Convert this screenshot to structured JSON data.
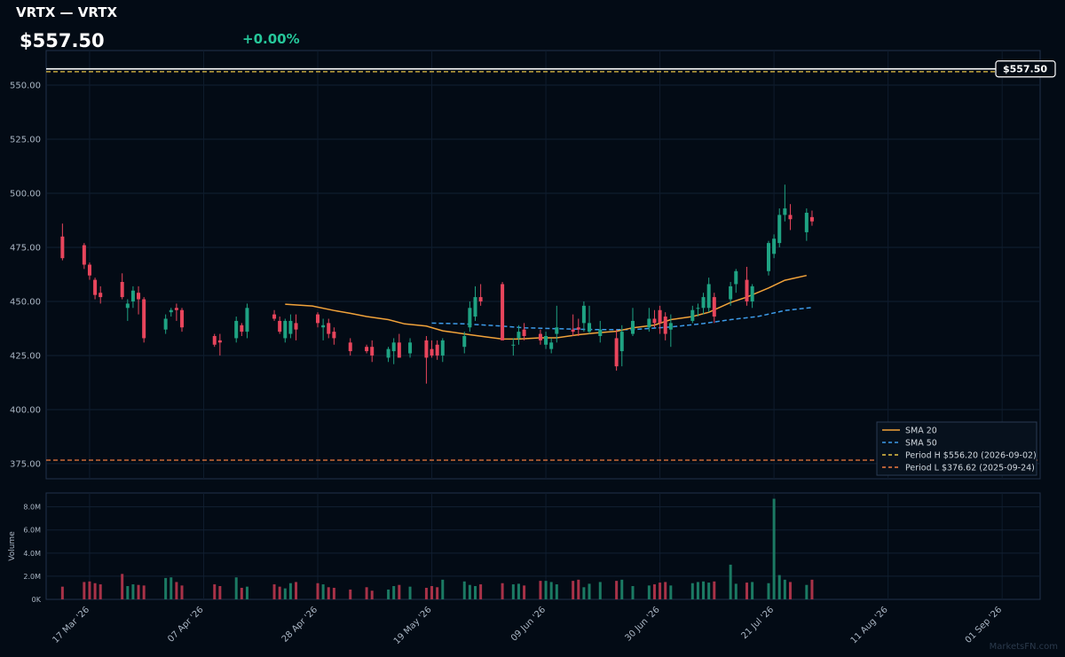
{
  "header": {
    "title": "VRTX — VRTX",
    "price": "$557.50",
    "change": "+0.00%"
  },
  "watermark": "MarketsFN.com",
  "colors": {
    "up": "#1fa383",
    "down": "#e8455c",
    "sma20": "#f2a33a",
    "sma50": "#3d9be9",
    "period_high": "#e8c446",
    "period_low": "#f07b3f",
    "last_price": "#ffffff"
  },
  "chart_data": [
    {
      "type": "candlestick",
      "ylim": [
        368,
        566
      ],
      "yticks": [
        375,
        400,
        425,
        450,
        475,
        500,
        525,
        550
      ],
      "ytick_labels": [
        "375.00",
        "400.00",
        "425.00",
        "450.00",
        "475.00",
        "500.00",
        "525.00",
        "550.00"
      ],
      "x_start": "2026-03-09",
      "x_end": "2026-09-08",
      "xtick_dates": [
        "2026-03-17",
        "2026-04-07",
        "2026-04-28",
        "2026-05-19",
        "2026-06-09",
        "2026-06-30",
        "2026-07-21",
        "2026-08-11",
        "2026-09-01"
      ],
      "xtick_labels": [
        "17 Mar '26",
        "07 Apr '26",
        "28 Apr '26",
        "19 May '26",
        "09 Jun '26",
        "30 Jun '26",
        "21 Jul '26",
        "11 Aug '26",
        "01 Sep '26"
      ],
      "last_price": 557.5,
      "last_price_label": "$557.50",
      "candles": [
        {
          "d": "2026-03-12",
          "o": 480,
          "h": 486,
          "l": 469,
          "c": 470
        },
        {
          "d": "2026-03-16",
          "o": 476,
          "h": 477,
          "l": 465,
          "c": 467
        },
        {
          "d": "2026-03-17",
          "o": 467,
          "h": 468,
          "l": 460,
          "c": 462
        },
        {
          "d": "2026-03-18",
          "o": 460,
          "h": 461,
          "l": 451,
          "c": 453
        },
        {
          "d": "2026-03-19",
          "o": 454,
          "h": 457,
          "l": 449,
          "c": 452
        },
        {
          "d": "2026-03-23",
          "o": 459,
          "h": 463,
          "l": 451,
          "c": 452
        },
        {
          "d": "2026-03-24",
          "o": 447,
          "h": 451,
          "l": 441,
          "c": 449
        },
        {
          "d": "2026-03-25",
          "o": 450,
          "h": 457,
          "l": 447,
          "c": 455
        },
        {
          "d": "2026-03-26",
          "o": 454,
          "h": 457,
          "l": 444,
          "c": 451
        },
        {
          "d": "2026-03-27",
          "o": 451,
          "h": 452,
          "l": 431,
          "c": 433
        },
        {
          "d": "2026-03-31",
          "o": 437,
          "h": 444,
          "l": 435,
          "c": 442
        },
        {
          "d": "2026-04-01",
          "o": 445,
          "h": 447,
          "l": 443,
          "c": 446
        },
        {
          "d": "2026-04-02",
          "o": 447,
          "h": 449,
          "l": 441,
          "c": 446
        },
        {
          "d": "2026-04-03",
          "o": 446,
          "h": 447,
          "l": 436,
          "c": 438
        },
        {
          "d": "2026-04-09",
          "o": 434,
          "h": 435,
          "l": 429,
          "c": 430
        },
        {
          "d": "2026-04-10",
          "o": 432,
          "h": 435,
          "l": 425,
          "c": 431
        },
        {
          "d": "2026-04-13",
          "o": 433,
          "h": 443,
          "l": 431,
          "c": 441
        },
        {
          "d": "2026-04-14",
          "o": 439,
          "h": 440,
          "l": 434,
          "c": 436
        },
        {
          "d": "2026-04-15",
          "o": 436,
          "h": 449,
          "l": 433,
          "c": 447
        },
        {
          "d": "2026-04-20",
          "o": 444,
          "h": 446,
          "l": 441,
          "c": 442
        },
        {
          "d": "2026-04-21",
          "o": 441,
          "h": 443,
          "l": 435,
          "c": 436
        },
        {
          "d": "2026-04-22",
          "o": 433,
          "h": 442,
          "l": 431,
          "c": 441
        },
        {
          "d": "2026-04-23",
          "o": 435,
          "h": 444,
          "l": 433,
          "c": 441
        },
        {
          "d": "2026-04-24",
          "o": 440,
          "h": 444,
          "l": 432,
          "c": 437
        },
        {
          "d": "2026-04-28",
          "o": 444,
          "h": 445,
          "l": 438,
          "c": 440
        },
        {
          "d": "2026-04-29",
          "o": 438,
          "h": 442,
          "l": 432,
          "c": 439
        },
        {
          "d": "2026-04-30",
          "o": 440,
          "h": 442,
          "l": 433,
          "c": 435
        },
        {
          "d": "2026-05-01",
          "o": 436,
          "h": 438,
          "l": 430,
          "c": 433
        },
        {
          "d": "2026-05-04",
          "o": 431,
          "h": 433,
          "l": 425,
          "c": 427
        },
        {
          "d": "2026-05-07",
          "o": 429,
          "h": 430,
          "l": 426,
          "c": 427
        },
        {
          "d": "2026-05-08",
          "o": 429,
          "h": 432,
          "l": 422,
          "c": 425
        },
        {
          "d": "2026-05-11",
          "o": 424,
          "h": 429,
          "l": 422,
          "c": 428
        },
        {
          "d": "2026-05-12",
          "o": 427,
          "h": 433,
          "l": 421,
          "c": 431
        },
        {
          "d": "2026-05-13",
          "o": 431,
          "h": 435,
          "l": 424,
          "c": 424
        },
        {
          "d": "2026-05-15",
          "o": 426,
          "h": 433,
          "l": 424,
          "c": 431
        },
        {
          "d": "2026-05-18",
          "o": 432,
          "h": 434,
          "l": 412,
          "c": 424
        },
        {
          "d": "2026-05-19",
          "o": 428,
          "h": 432,
          "l": 424,
          "c": 425
        },
        {
          "d": "2026-05-20",
          "o": 430,
          "h": 432,
          "l": 423,
          "c": 425
        },
        {
          "d": "2026-05-21",
          "o": 425,
          "h": 433,
          "l": 422,
          "c": 432
        },
        {
          "d": "2026-05-25",
          "o": 429,
          "h": 436,
          "l": 426,
          "c": 434
        },
        {
          "d": "2026-05-26",
          "o": 438,
          "h": 450,
          "l": 436,
          "c": 447
        },
        {
          "d": "2026-05-27",
          "o": 443,
          "h": 457,
          "l": 441,
          "c": 452
        },
        {
          "d": "2026-05-28",
          "o": 452,
          "h": 458,
          "l": 448,
          "c": 450
        },
        {
          "d": "2026-06-01",
          "o": 458,
          "h": 459,
          "l": 432,
          "c": 432
        },
        {
          "d": "2026-06-03",
          "o": 430,
          "h": 433,
          "l": 425,
          "c": 430
        },
        {
          "d": "2026-06-04",
          "o": 433,
          "h": 439,
          "l": 430,
          "c": 436
        },
        {
          "d": "2026-06-05",
          "o": 437,
          "h": 440,
          "l": 432,
          "c": 434
        },
        {
          "d": "2026-06-08",
          "o": 435,
          "h": 437,
          "l": 430,
          "c": 432
        },
        {
          "d": "2026-06-09",
          "o": 430,
          "h": 436,
          "l": 428,
          "c": 434
        },
        {
          "d": "2026-06-10",
          "o": 428,
          "h": 433,
          "l": 426,
          "c": 431
        },
        {
          "d": "2026-06-11",
          "o": 435,
          "h": 448,
          "l": 431,
          "c": 438
        },
        {
          "d": "2026-06-14",
          "o": 437,
          "h": 444,
          "l": 434,
          "c": 436
        },
        {
          "d": "2026-06-15",
          "o": 438,
          "h": 442,
          "l": 434,
          "c": 437
        },
        {
          "d": "2026-06-16",
          "o": 440,
          "h": 450,
          "l": 436,
          "c": 448
        },
        {
          "d": "2026-06-17",
          "o": 436,
          "h": 448,
          "l": 435,
          "c": 440
        },
        {
          "d": "2026-06-19",
          "o": 434,
          "h": 441,
          "l": 431,
          "c": 437
        },
        {
          "d": "2026-06-22",
          "o": 433,
          "h": 437,
          "l": 418,
          "c": 420
        },
        {
          "d": "2026-06-23",
          "o": 427,
          "h": 439,
          "l": 420,
          "c": 436
        },
        {
          "d": "2026-06-25",
          "o": 435,
          "h": 447,
          "l": 434,
          "c": 441
        },
        {
          "d": "2026-06-28",
          "o": 438,
          "h": 447,
          "l": 436,
          "c": 442
        },
        {
          "d": "2026-06-29",
          "o": 442,
          "h": 446,
          "l": 438,
          "c": 440
        },
        {
          "d": "2026-06-30",
          "o": 446,
          "h": 448,
          "l": 435,
          "c": 440
        },
        {
          "d": "2026-07-01",
          "o": 443,
          "h": 445,
          "l": 432,
          "c": 435
        },
        {
          "d": "2026-07-02",
          "o": 437,
          "h": 444,
          "l": 429,
          "c": 440
        },
        {
          "d": "2026-07-06",
          "o": 441,
          "h": 448,
          "l": 440,
          "c": 446
        },
        {
          "d": "2026-07-07",
          "o": 447,
          "h": 449,
          "l": 443,
          "c": 447
        },
        {
          "d": "2026-07-08",
          "o": 447,
          "h": 454,
          "l": 444,
          "c": 452
        },
        {
          "d": "2026-07-09",
          "o": 447,
          "h": 461,
          "l": 445,
          "c": 458
        },
        {
          "d": "2026-07-10",
          "o": 452,
          "h": 454,
          "l": 440,
          "c": 443
        },
        {
          "d": "2026-07-13",
          "o": 451,
          "h": 459,
          "l": 448,
          "c": 457
        },
        {
          "d": "2026-07-14",
          "o": 458,
          "h": 465,
          "l": 454,
          "c": 464
        },
        {
          "d": "2026-07-16",
          "o": 460,
          "h": 466,
          "l": 448,
          "c": 450
        },
        {
          "d": "2026-07-17",
          "o": 450,
          "h": 458,
          "l": 447,
          "c": 457
        },
        {
          "d": "2026-07-20",
          "o": 464,
          "h": 478,
          "l": 462,
          "c": 477
        },
        {
          "d": "2026-07-21",
          "o": 472,
          "h": 481,
          "l": 470,
          "c": 479
        },
        {
          "d": "2026-07-22",
          "o": 477,
          "h": 493,
          "l": 475,
          "c": 490
        },
        {
          "d": "2026-07-23",
          "o": 490,
          "h": 504,
          "l": 487,
          "c": 493
        },
        {
          "d": "2026-07-24",
          "o": 490,
          "h": 495,
          "l": 483,
          "c": 488
        },
        {
          "d": "2026-07-27",
          "o": 482,
          "h": 493,
          "l": 478,
          "c": 491
        },
        {
          "d": "2026-07-28",
          "o": 489,
          "h": 492,
          "l": 485,
          "c": 487
        }
      ],
      "sma20_points": [
        {
          "d": "2026-04-22",
          "v": 448.7
        },
        {
          "d": "2026-04-27",
          "v": 447.9
        },
        {
          "d": "2026-05-01",
          "v": 445.8
        },
        {
          "d": "2026-05-04",
          "v": 444.5
        },
        {
          "d": "2026-05-07",
          "v": 443.0
        },
        {
          "d": "2026-05-11",
          "v": 441.6
        },
        {
          "d": "2026-05-14",
          "v": 439.6
        },
        {
          "d": "2026-05-18",
          "v": 438.6
        },
        {
          "d": "2026-05-21",
          "v": 436.4
        },
        {
          "d": "2026-05-26",
          "v": 434.6
        },
        {
          "d": "2026-05-29",
          "v": 433.6
        },
        {
          "d": "2026-06-01",
          "v": 432.6
        },
        {
          "d": "2026-06-04",
          "v": 432.6
        },
        {
          "d": "2026-06-08",
          "v": 433.2
        },
        {
          "d": "2026-06-11",
          "v": 433.2
        },
        {
          "d": "2026-06-15",
          "v": 434.6
        },
        {
          "d": "2026-06-18",
          "v": 435.4
        },
        {
          "d": "2026-06-22",
          "v": 436.2
        },
        {
          "d": "2026-06-25",
          "v": 437.8
        },
        {
          "d": "2026-06-29",
          "v": 439.1
        },
        {
          "d": "2026-07-02",
          "v": 441.6
        },
        {
          "d": "2026-07-06",
          "v": 443.0
        },
        {
          "d": "2026-07-09",
          "v": 445.0
        },
        {
          "d": "2026-07-13",
          "v": 449.5
        },
        {
          "d": "2026-07-16",
          "v": 452.0
        },
        {
          "d": "2026-07-20",
          "v": 456.2
        },
        {
          "d": "2026-07-23",
          "v": 459.8
        },
        {
          "d": "2026-07-27",
          "v": 462.0
        }
      ],
      "sma50_points": [
        {
          "d": "2026-05-19",
          "v": 440.0
        },
        {
          "d": "2026-05-25",
          "v": 439.6
        },
        {
          "d": "2026-06-01",
          "v": 438.6
        },
        {
          "d": "2026-06-05",
          "v": 437.8
        },
        {
          "d": "2026-06-11",
          "v": 437.4
        },
        {
          "d": "2026-06-18",
          "v": 437.0
        },
        {
          "d": "2026-06-25",
          "v": 437.0
        },
        {
          "d": "2026-07-02",
          "v": 438.2
        },
        {
          "d": "2026-07-08",
          "v": 439.8
        },
        {
          "d": "2026-07-13",
          "v": 441.6
        },
        {
          "d": "2026-07-18",
          "v": 443.0
        },
        {
          "d": "2026-07-23",
          "v": 445.8
        },
        {
          "d": "2026-07-28",
          "v": 447.2
        }
      ],
      "period_high": 556.2,
      "period_low": 376.62,
      "legend": [
        "SMA 20",
        "SMA 50",
        "Period H $556.20 (2026-09-02)",
        "Period L $376.62 (2025-09-24)"
      ],
      "legend_position": "bottom-right"
    },
    {
      "type": "bar",
      "ylabel": "Volume",
      "ylim": [
        0,
        9200000
      ],
      "yticks": [
        0,
        2000000,
        4000000,
        6000000,
        8000000
      ],
      "ytick_labels": [
        "0K",
        "2.0M",
        "4.0M",
        "6.0M",
        "8.0M"
      ],
      "values_follow_candles": true,
      "volumes": [
        1100000,
        1500000,
        1550000,
        1400000,
        1300000,
        2200000,
        1150000,
        1300000,
        1250000,
        1200000,
        1850000,
        1900000,
        1500000,
        1200000,
        1300000,
        1150000,
        1900000,
        1000000,
        1100000,
        1300000,
        1100000,
        950000,
        1400000,
        1500000,
        1400000,
        1300000,
        1050000,
        1000000,
        850000,
        1050000,
        750000,
        850000,
        1150000,
        1250000,
        1100000,
        1000000,
        1150000,
        1050000,
        1700000,
        1550000,
        1250000,
        1150000,
        1300000,
        1400000,
        1300000,
        1350000,
        1200000,
        1600000,
        1600000,
        1500000,
        1300000,
        1600000,
        1700000,
        1050000,
        1350000,
        1500000,
        1600000,
        1700000,
        1150000,
        1200000,
        1300000,
        1450000,
        1500000,
        1200000,
        1400000,
        1500000,
        1550000,
        1450000,
        1550000,
        3000000,
        1350000,
        1450000,
        1500000,
        1400000,
        8700000,
        2100000,
        1700000,
        1500000,
        1250000,
        1700000
      ]
    }
  ]
}
